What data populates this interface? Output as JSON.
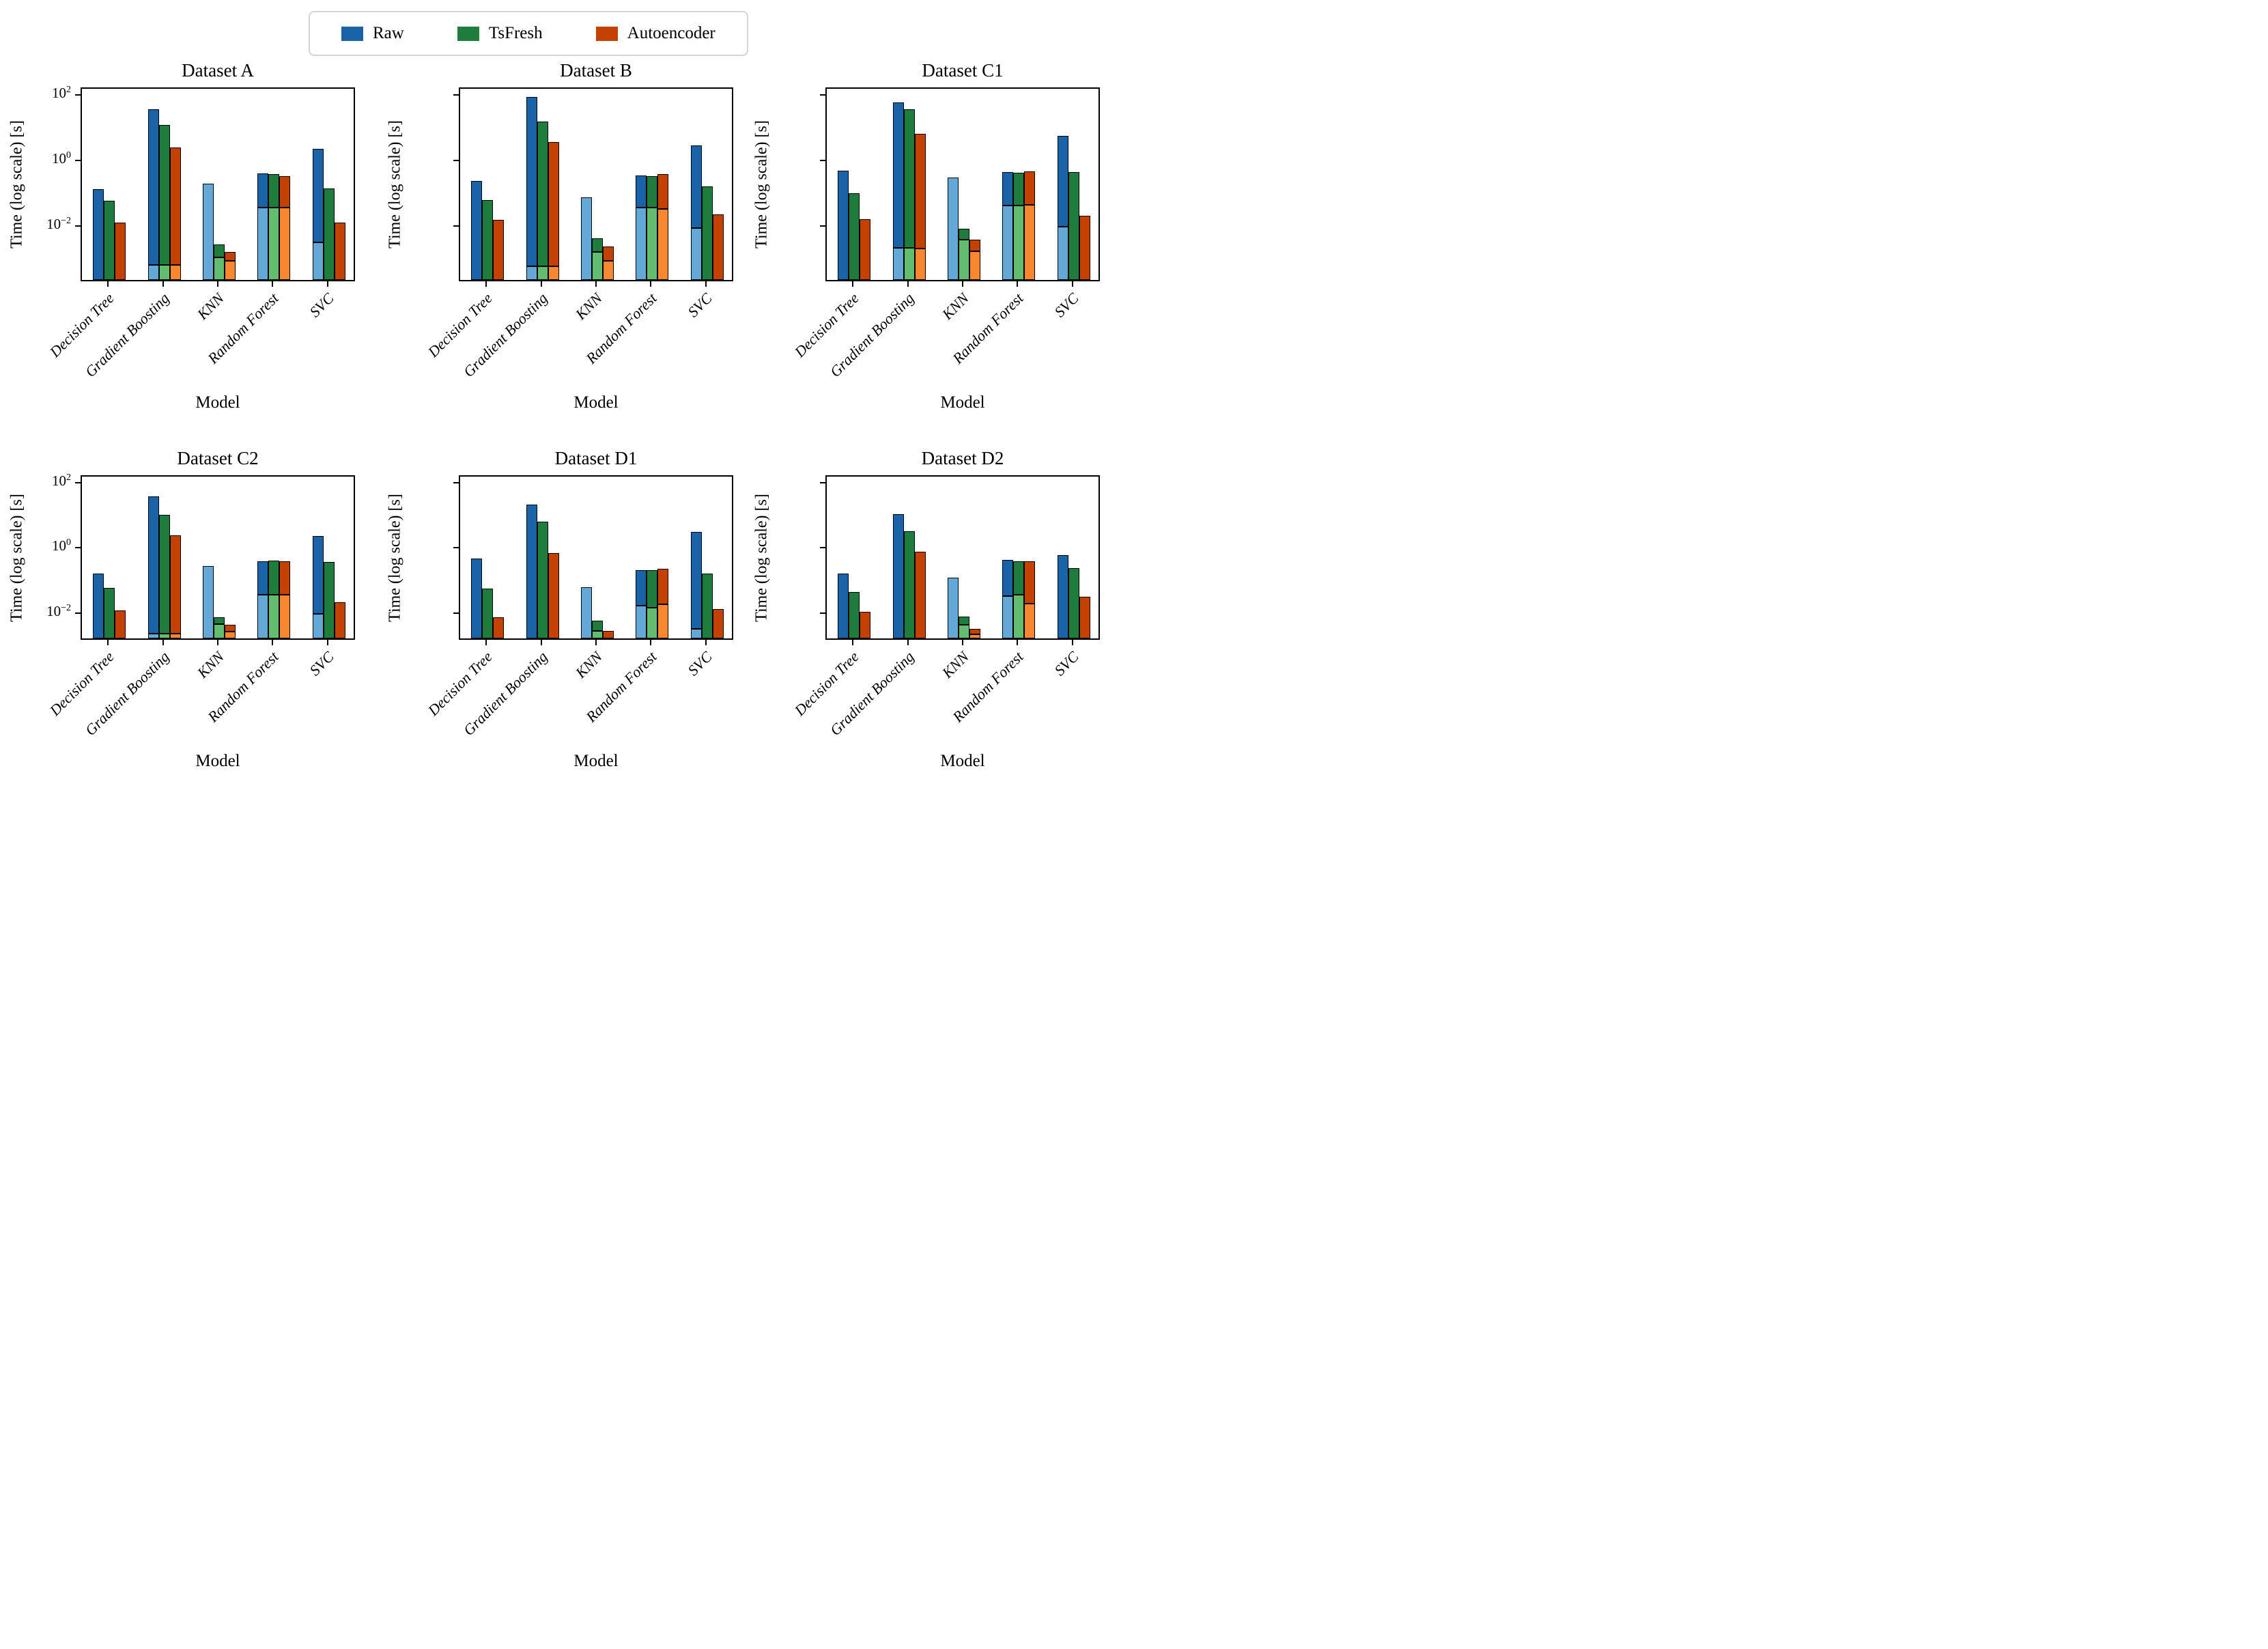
{
  "legend": {
    "items": [
      {
        "label": "Raw",
        "key": "raw"
      },
      {
        "label": "TsFresh",
        "key": "tsfresh"
      },
      {
        "label": "Autoencoder",
        "key": "autoencoder"
      }
    ]
  },
  "palette": {
    "raw": {
      "dark": "#1b63a8",
      "light": "#64a8d8"
    },
    "tsfresh": {
      "dark": "#1e7c3d",
      "light": "#63bd6f"
    },
    "autoencoder": {
      "dark": "#c44101",
      "light": "#f8872f"
    }
  },
  "axes": {
    "ylabel": "Time (log scale) [s]",
    "xlabel": "Model",
    "ytick_values": [
      100,
      1,
      0.01
    ],
    "ytick_exponents": [
      2,
      0,
      -2
    ],
    "categories": [
      "Decision Tree",
      "Gradient Boosting",
      "KNN",
      "Random Forest",
      "SVC"
    ],
    "grid": false,
    "legend_position": "top-center"
  },
  "chart_data": [
    {
      "type": "bar",
      "title": "Dataset A",
      "log_scale": true,
      "ylim": [
        0.00021,
        170
      ],
      "ytick_labels_visible": true,
      "note": "each bar = [light_segment_top_or_null, total_top] seconds",
      "series": [
        {
          "name": "Raw",
          "bars": [
            [
              null,
              0.12
            ],
            [
              0.0006,
              34
            ],
            [
              0.18,
              0.18
            ],
            [
              0.033,
              0.37
            ],
            [
              0.003,
              2.1
            ]
          ]
        },
        {
          "name": "TsFresh",
          "bars": [
            [
              null,
              0.055
            ],
            [
              0.0006,
              11
            ],
            [
              0.001,
              0.0025
            ],
            [
              0.033,
              0.35
            ],
            [
              null,
              0.13
            ]
          ]
        },
        {
          "name": "Autoencoder",
          "bars": [
            [
              null,
              0.012
            ],
            [
              0.0006,
              2.3
            ],
            [
              0.0008,
              0.0015
            ],
            [
              0.033,
              0.3
            ],
            [
              null,
              0.012
            ]
          ]
        }
      ]
    },
    {
      "type": "bar",
      "title": "Dataset B",
      "log_scale": true,
      "ylim": [
        0.00021,
        170
      ],
      "ytick_labels_visible": false,
      "series": [
        {
          "name": "Raw",
          "bars": [
            [
              null,
              0.22
            ],
            [
              0.00056,
              80
            ],
            [
              0.07,
              0.07
            ],
            [
              0.033,
              0.32
            ],
            [
              0.008,
              2.6
            ]
          ]
        },
        {
          "name": "TsFresh",
          "bars": [
            [
              null,
              0.058
            ],
            [
              0.00056,
              14
            ],
            [
              0.0015,
              0.004
            ],
            [
              0.033,
              0.31
            ],
            [
              null,
              0.15
            ]
          ]
        },
        {
          "name": "Autoencoder",
          "bars": [
            [
              null,
              0.014
            ],
            [
              0.00056,
              3.4
            ],
            [
              0.0008,
              0.0022
            ],
            [
              0.03,
              0.36
            ],
            [
              null,
              0.021
            ]
          ]
        }
      ]
    },
    {
      "type": "bar",
      "title": "Dataset C1",
      "log_scale": true,
      "ylim": [
        0.00021,
        170
      ],
      "ytick_labels_visible": false,
      "series": [
        {
          "name": "Raw",
          "bars": [
            [
              null,
              0.44
            ],
            [
              0.002,
              54
            ],
            [
              0.28,
              0.28
            ],
            [
              0.038,
              0.4
            ],
            [
              0.009,
              5.2
            ]
          ]
        },
        {
          "name": "TsFresh",
          "bars": [
            [
              null,
              0.09
            ],
            [
              0.002,
              34
            ],
            [
              0.0035,
              0.0075
            ],
            [
              0.038,
              0.39
            ],
            [
              null,
              0.4
            ]
          ]
        },
        {
          "name": "Autoencoder",
          "bars": [
            [
              null,
              0.015
            ],
            [
              0.0019,
              6.0
            ],
            [
              0.0016,
              0.0036
            ],
            [
              0.04,
              0.43
            ],
            [
              null,
              0.019
            ]
          ]
        }
      ]
    },
    {
      "type": "bar",
      "title": "Dataset C2",
      "log_scale": true,
      "ylim": [
        0.0015,
        170
      ],
      "ytick_labels_visible": true,
      "series": [
        {
          "name": "Raw",
          "bars": [
            [
              null,
              0.145
            ],
            [
              0.0021,
              35
            ],
            [
              0.25,
              0.25
            ],
            [
              0.033,
              0.35
            ],
            [
              0.0084,
              2.1
            ]
          ]
        },
        {
          "name": "TsFresh",
          "bars": [
            [
              null,
              0.054
            ],
            [
              0.0021,
              9.2
            ],
            [
              0.0041,
              0.0066
            ],
            [
              0.033,
              0.37
            ],
            [
              null,
              0.33
            ]
          ]
        },
        {
          "name": "Autoencoder",
          "bars": [
            [
              null,
              0.011
            ],
            [
              0.0021,
              2.2
            ],
            [
              0.0024,
              0.004
            ],
            [
              0.033,
              0.36
            ],
            [
              null,
              0.019
            ]
          ]
        }
      ]
    },
    {
      "type": "bar",
      "title": "Dataset D1",
      "log_scale": true,
      "ylim": [
        0.0015,
        170
      ],
      "ytick_labels_visible": false,
      "series": [
        {
          "name": "Raw",
          "bars": [
            [
              null,
              0.43
            ],
            [
              null,
              19
            ],
            [
              0.055,
              0.055
            ],
            [
              0.015,
              0.19
            ],
            [
              0.003,
              2.8
            ]
          ]
        },
        {
          "name": "TsFresh",
          "bars": [
            [
              null,
              0.05
            ],
            [
              null,
              5.7
            ],
            [
              0.0026,
              0.0054
            ],
            [
              0.013,
              0.19
            ],
            [
              null,
              0.15
            ]
          ]
        },
        {
          "name": "Autoencoder",
          "bars": [
            [
              null,
              0.0066
            ],
            [
              null,
              0.63
            ],
            [
              0.0014,
              0.0026
            ],
            [
              0.017,
              0.21
            ],
            [
              null,
              0.012
            ]
          ]
        }
      ]
    },
    {
      "type": "bar",
      "title": "Dataset D2",
      "log_scale": true,
      "ylim": [
        0.0015,
        170
      ],
      "ytick_labels_visible": false,
      "series": [
        {
          "name": "Raw",
          "bars": [
            [
              null,
              0.15
            ],
            [
              null,
              10
            ],
            [
              0.11,
              0.11
            ],
            [
              0.03,
              0.38
            ],
            [
              0.0014,
              0.55
            ]
          ]
        },
        {
          "name": "TsFresh",
          "bars": [
            [
              null,
              0.04
            ],
            [
              null,
              3.0
            ],
            [
              0.004,
              0.007
            ],
            [
              0.033,
              0.36
            ],
            [
              null,
              0.22
            ]
          ]
        },
        {
          "name": "Autoencoder",
          "bars": [
            [
              null,
              0.01
            ],
            [
              null,
              0.7
            ],
            [
              0.002,
              0.003
            ],
            [
              0.018,
              0.36
            ],
            [
              null,
              0.028
            ]
          ]
        }
      ]
    }
  ]
}
